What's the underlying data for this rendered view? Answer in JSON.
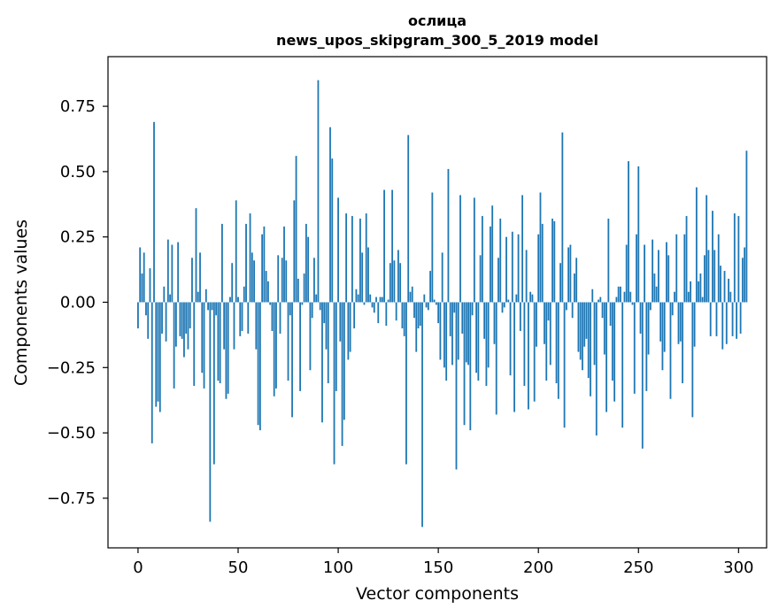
{
  "chart_data": {
    "type": "bar",
    "title": "ослица",
    "subtitle": "news_upos_skipgram_300_5_2019 model",
    "xlabel": "Vector components",
    "ylabel": "Components values",
    "xlim": [
      -15,
      314
    ],
    "ylim": [
      -0.94,
      0.94
    ],
    "xticks": [
      0,
      50,
      100,
      150,
      200,
      250,
      300
    ],
    "yticks": [
      -0.75,
      -0.5,
      -0.25,
      0.0,
      0.25,
      0.5,
      0.75
    ],
    "ytick_labels": [
      "−0.75",
      "−0.50",
      "−0.25",
      "0.00",
      "0.25",
      "0.50",
      "0.75"
    ],
    "grid": false,
    "bar_color": "#1f77b4",
    "values": [
      -0.1,
      0.21,
      0.11,
      0.19,
      -0.05,
      -0.14,
      0.13,
      -0.54,
      0.69,
      -0.4,
      -0.38,
      -0.42,
      -0.12,
      0.06,
      -0.15,
      0.24,
      0.03,
      0.22,
      -0.33,
      -0.17,
      0.23,
      -0.13,
      -0.14,
      -0.21,
      -0.12,
      -0.18,
      -0.1,
      0.17,
      -0.32,
      0.36,
      0.04,
      0.19,
      -0.27,
      -0.33,
      0.05,
      -0.03,
      -0.84,
      -0.03,
      -0.62,
      -0.05,
      -0.3,
      -0.31,
      0.3,
      -0.18,
      -0.37,
      -0.35,
      0.02,
      0.15,
      -0.18,
      0.39,
      0.02,
      -0.13,
      -0.11,
      0.06,
      0.3,
      -0.12,
      0.34,
      0.19,
      0.16,
      -0.18,
      -0.47,
      -0.49,
      0.26,
      0.29,
      0.12,
      0.08,
      -0.01,
      -0.11,
      -0.36,
      -0.33,
      0.18,
      -0.12,
      0.17,
      0.29,
      0.16,
      -0.3,
      -0.05,
      -0.44,
      0.39,
      0.56,
      0.09,
      -0.34,
      -0.01,
      0.11,
      0.3,
      0.25,
      -0.26,
      -0.06,
      0.17,
      0.03,
      0.85,
      -0.03,
      -0.46,
      -0.08,
      -0.18,
      -0.31,
      0.67,
      0.55,
      -0.62,
      -0.34,
      0.4,
      -0.15,
      -0.55,
      -0.45,
      0.34,
      -0.22,
      -0.19,
      0.33,
      -0.1,
      0.05,
      0.03,
      0.32,
      0.19,
      -0.01,
      0.34,
      0.21,
      0.03,
      -0.02,
      -0.04,
      0.02,
      -0.08,
      0.02,
      0.02,
      0.43,
      -0.09,
      0.01,
      0.15,
      0.43,
      0.16,
      -0.07,
      0.2,
      0.15,
      -0.1,
      -0.13,
      -0.62,
      0.64,
      0.04,
      0.06,
      -0.06,
      -0.19,
      -0.1,
      -0.09,
      -0.86,
      0.03,
      -0.02,
      -0.03,
      0.12,
      0.42,
      0.01,
      -0.01,
      -0.08,
      -0.22,
      0.19,
      -0.25,
      -0.3,
      0.51,
      -0.13,
      -0.24,
      -0.04,
      -0.64,
      -0.22,
      0.41,
      -0.12,
      -0.47,
      -0.23,
      -0.24,
      -0.49,
      -0.05,
      0.4,
      -0.27,
      -0.3,
      0.18,
      0.33,
      -0.14,
      -0.32,
      -0.25,
      0.29,
      0.37,
      -0.16,
      -0.43,
      0.17,
      0.32,
      -0.04,
      -0.02,
      0.25,
      0.01,
      -0.28,
      0.27,
      -0.42,
      0.03,
      0.26,
      -0.11,
      0.41,
      -0.32,
      0.2,
      -0.41,
      0.04,
      0.03,
      -0.38,
      -0.17,
      0.26,
      0.42,
      0.3,
      -0.16,
      -0.3,
      -0.07,
      -0.24,
      0.32,
      0.31,
      -0.31,
      -0.37,
      0.15,
      0.65,
      -0.48,
      -0.03,
      0.21,
      0.22,
      -0.06,
      0.11,
      0.17,
      -0.19,
      -0.22,
      -0.26,
      -0.17,
      -0.14,
      -0.29,
      -0.36,
      0.05,
      -0.24,
      -0.51,
      0.01,
      0.02,
      -0.06,
      -0.2,
      -0.42,
      0.32,
      -0.09,
      -0.3,
      -0.38,
      0.02,
      0.06,
      0.06,
      -0.48,
      0.04,
      0.22,
      0.54,
      0.04,
      -0.01,
      -0.35,
      0.26,
      0.52,
      -0.12,
      -0.56,
      0.22,
      -0.34,
      -0.2,
      -0.03,
      0.24,
      0.11,
      0.06,
      0.2,
      -0.15,
      -0.26,
      -0.19,
      0.23,
      0.18,
      -0.37,
      -0.05,
      0.04,
      0.26,
      -0.16,
      -0.15,
      -0.31,
      0.26,
      0.33,
      0.04,
      0.08,
      -0.44,
      -0.17,
      0.44,
      0.08,
      0.11,
      0.02,
      0.18,
      0.41,
      0.2,
      -0.13,
      0.35,
      0.2,
      -0.13,
      0.26,
      0.14,
      -0.18,
      0.12,
      -0.16,
      0.09,
      0.04,
      -0.13,
      0.34,
      -0.14,
      0.33,
      -0.12,
      0.17,
      0.21,
      0.58
    ]
  }
}
